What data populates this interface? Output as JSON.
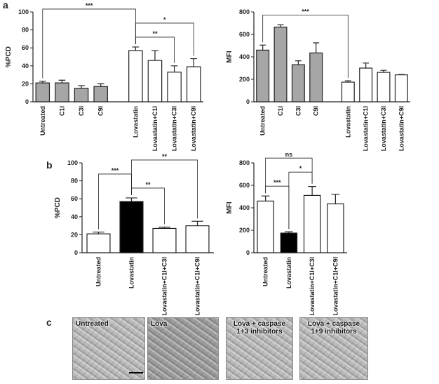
{
  "panel_labels": [
    "a",
    "b",
    "c"
  ],
  "micrographs": [
    "Untreated",
    "Lova",
    "Lova + caspase 1+3 inhibitors",
    "Lova + caspase 1+9 inhibitors"
  ],
  "chart_data": [
    {
      "type": "bar",
      "y_label": "%PCD",
      "categories": [
        "Untreated",
        "C1I",
        "C3I",
        "C9I",
        "Lovastatin",
        "Lovastatin+C1I",
        "Lovastatin+C3I",
        "Lovastatin+C9I"
      ],
      "values": [
        21,
        21,
        15,
        17,
        57,
        46,
        33,
        39
      ],
      "errors": [
        2,
        3,
        3,
        3,
        4,
        11,
        7,
        9
      ],
      "colors": [
        "#a6a6a6",
        "#a6a6a6",
        "#a6a6a6",
        "#a6a6a6",
        "#ffffff",
        "#ffffff",
        "#ffffff",
        "#ffffff"
      ],
      "ylim": [
        0,
        100
      ],
      "yticks": [
        0,
        20,
        40,
        60,
        80,
        100
      ],
      "annotations": [
        {
          "text": "***",
          "pair": [
            0,
            4
          ]
        },
        {
          "text": "**",
          "pair": [
            4,
            6
          ]
        },
        {
          "text": "*",
          "pair": [
            4,
            7
          ]
        }
      ]
    },
    {
      "type": "bar",
      "y_label": "MFI",
      "categories": [
        "Untreated",
        "C1I",
        "C3I",
        "C9I",
        "Lovastatin",
        "Lovastatin+C1I",
        "Lovastatin+C3I",
        "Lovastatin+C9I"
      ],
      "values": [
        460,
        665,
        330,
        435,
        175,
        300,
        262,
        240
      ],
      "errors": [
        45,
        20,
        35,
        90,
        12,
        45,
        18,
        3
      ],
      "colors": [
        "#a6a6a6",
        "#a6a6a6",
        "#a6a6a6",
        "#a6a6a6",
        "#ffffff",
        "#ffffff",
        "#ffffff",
        "#ffffff"
      ],
      "ylim": [
        0,
        800
      ],
      "yticks": [
        0,
        200,
        400,
        600,
        800
      ],
      "annotations": [
        {
          "text": "***",
          "pair": [
            0,
            4
          ]
        }
      ]
    },
    {
      "type": "bar",
      "y_label": "%PCD",
      "categories": [
        "Untreated",
        "Lovastatin",
        "Lovastatin+C1I+C3I",
        "Lovastatin+C1I+C9I"
      ],
      "values": [
        21,
        57,
        27,
        30
      ],
      "errors": [
        2,
        4,
        1.5,
        5
      ],
      "colors": [
        "#ffffff",
        "#000000",
        "#ffffff",
        "#ffffff"
      ],
      "ylim": [
        0,
        100
      ],
      "yticks": [
        0,
        20,
        40,
        60,
        80,
        100
      ],
      "annotations": [
        {
          "text": "**",
          "pair": [
            1,
            2
          ]
        },
        {
          "text": "***",
          "pair": [
            0,
            1
          ]
        },
        {
          "text": "**",
          "pair": [
            1,
            3
          ]
        }
      ]
    },
    {
      "type": "bar",
      "y_label": "MFI",
      "categories": [
        "Untreated",
        "Lovastatin",
        "Lovastatin+C1I+C3I",
        "Lovastatin+C1I+C9I"
      ],
      "values": [
        460,
        175,
        510,
        435
      ],
      "errors": [
        45,
        12,
        80,
        85
      ],
      "colors": [
        "#ffffff",
        "#000000",
        "#ffffff",
        "#ffffff"
      ],
      "ylim": [
        0,
        800
      ],
      "yticks": [
        0,
        200,
        400,
        600,
        800
      ],
      "annotations": [
        {
          "text": "***",
          "pair": [
            0,
            1
          ]
        },
        {
          "text": "*",
          "pair": [
            1,
            2
          ]
        },
        {
          "text": "ns",
          "pair": [
            0,
            2
          ]
        }
      ]
    }
  ]
}
